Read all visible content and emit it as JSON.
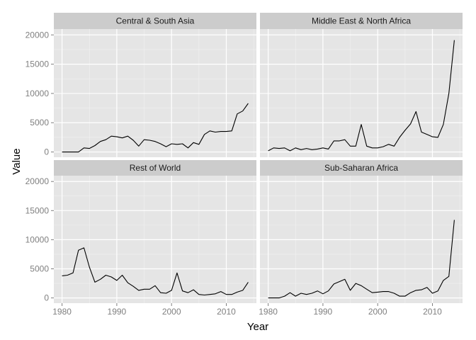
{
  "colors": {
    "panel_bg": "#e5e5e5",
    "strip_bg": "#cccccc",
    "grid_major": "#ffffff",
    "grid_minor": "#f2f2f2",
    "line": "#000000",
    "tick_text": "#7f7f7f",
    "tick_mark": "#7f7f7f"
  },
  "chart_data": {
    "type": "line",
    "layout": "facet-grid-2x2",
    "xlabel": "Year",
    "ylabel": "Value",
    "xlim": [
      1978.5,
      2015.5
    ],
    "ylim": [
      -900,
      21000
    ],
    "x_ticks": [
      1980,
      1990,
      2000,
      2010
    ],
    "y_ticks": [
      0,
      5000,
      10000,
      15000,
      20000
    ],
    "x_tick_labels": [
      "1980",
      "1990",
      "2000",
      "2010"
    ],
    "y_tick_labels": [
      "0",
      "5000",
      "10000",
      "15000",
      "20000"
    ],
    "grid": true,
    "x": [
      1980,
      1981,
      1982,
      1983,
      1984,
      1985,
      1986,
      1987,
      1988,
      1989,
      1990,
      1991,
      1992,
      1993,
      1994,
      1995,
      1996,
      1997,
      1998,
      1999,
      2000,
      2001,
      2002,
      2003,
      2004,
      2005,
      2006,
      2007,
      2008,
      2009,
      2010,
      2011,
      2012,
      2013,
      2014
    ],
    "panels": [
      {
        "title": "Central & South Asia",
        "values": [
          0,
          0,
          0,
          0,
          700,
          600,
          1100,
          1800,
          2100,
          2700,
          2600,
          2400,
          2700,
          2000,
          1000,
          2100,
          2000,
          1800,
          1400,
          900,
          1400,
          1300,
          1400,
          700,
          1600,
          1300,
          3000,
          3600,
          3400,
          3500,
          3500,
          3600,
          6500,
          7000,
          8300
        ]
      },
      {
        "title": "Middle East & North Africa",
        "values": [
          200,
          700,
          600,
          700,
          200,
          700,
          400,
          600,
          400,
          500,
          700,
          500,
          1900,
          1900,
          2100,
          1000,
          1000,
          4700,
          1000,
          700,
          700,
          900,
          1300,
          1000,
          2500,
          3700,
          4800,
          6900,
          3400,
          3000,
          2600,
          2500,
          4700,
          10000,
          19100
        ]
      },
      {
        "title": "Rest of World",
        "values": [
          3800,
          3900,
          4300,
          8200,
          8600,
          5300,
          2700,
          3200,
          3900,
          3600,
          3000,
          3900,
          2600,
          2000,
          1300,
          1500,
          1500,
          2100,
          900,
          800,
          1300,
          4300,
          1200,
          900,
          1400,
          600,
          500,
          600,
          700,
          1100,
          600,
          600,
          1000,
          1300,
          2700
        ]
      },
      {
        "title": "Sub-Saharan Africa",
        "values": [
          0,
          0,
          0,
          300,
          900,
          300,
          800,
          600,
          800,
          1200,
          700,
          1200,
          2400,
          2800,
          3200,
          1300,
          2500,
          2100,
          1500,
          900,
          1000,
          1100,
          1100,
          800,
          300,
          300,
          900,
          1300,
          1400,
          1800,
          800,
          1200,
          3000,
          3700,
          13400
        ]
      }
    ]
  }
}
